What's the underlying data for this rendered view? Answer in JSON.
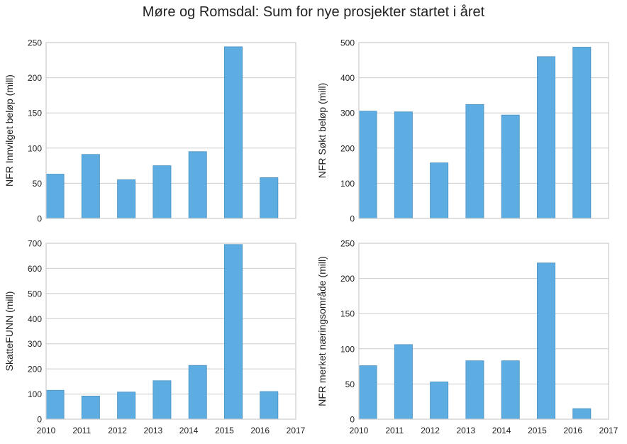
{
  "title": "Møre og Romsdal: Sum for nye prosjekter startet i året",
  "colors": {
    "bar": "#5DADE2",
    "bar_edge": "#4A90C0",
    "grid": "#CCCCCC",
    "frame": "#CCCCCC"
  },
  "chart_data": [
    {
      "type": "bar",
      "title": "",
      "xlabel": "",
      "ylabel": "NFR Innvilget beløp (mill)",
      "categories": [
        "2010",
        "2011",
        "2012",
        "2013",
        "2014",
        "2015",
        "2016"
      ],
      "values": [
        63,
        91,
        55,
        75,
        95,
        244,
        58
      ],
      "xlim": [
        2010,
        2017
      ],
      "ylim": [
        0,
        250
      ],
      "yticks": [
        0,
        50,
        100,
        150,
        200,
        250
      ],
      "xticks": [],
      "grid": true
    },
    {
      "type": "bar",
      "title": "",
      "xlabel": "",
      "ylabel": "NFR Søkt beløp (mill)",
      "categories": [
        "2010",
        "2011",
        "2012",
        "2013",
        "2014",
        "2015",
        "2016"
      ],
      "values": [
        305,
        303,
        158,
        324,
        294,
        460,
        487
      ],
      "xlim": [
        2010,
        2017
      ],
      "ylim": [
        0,
        500
      ],
      "yticks": [
        0,
        100,
        200,
        300,
        400,
        500
      ],
      "xticks": [],
      "grid": true
    },
    {
      "type": "bar",
      "title": "",
      "xlabel": "",
      "ylabel": "SkatteFUNN (mill)",
      "categories": [
        "2010",
        "2011",
        "2012",
        "2013",
        "2014",
        "2015",
        "2016"
      ],
      "values": [
        115,
        92,
        108,
        153,
        214,
        695,
        110
      ],
      "xlim": [
        2010,
        2017
      ],
      "ylim": [
        0,
        700
      ],
      "yticks": [
        0,
        100,
        200,
        300,
        400,
        500,
        600,
        700
      ],
      "xticks": [
        "2010",
        "2011",
        "2012",
        "2013",
        "2014",
        "2015",
        "2016",
        "2017"
      ],
      "grid": true
    },
    {
      "type": "bar",
      "title": "",
      "xlabel": "",
      "ylabel": "NFR merket næringsområde (mill)",
      "categories": [
        "2010",
        "2011",
        "2012",
        "2013",
        "2014",
        "2015",
        "2016"
      ],
      "values": [
        76,
        106,
        53,
        83,
        83,
        222,
        15
      ],
      "xlim": [
        2010,
        2017
      ],
      "ylim": [
        0,
        250
      ],
      "yticks": [
        0,
        50,
        100,
        150,
        200,
        250
      ],
      "xticks": [
        "2010",
        "2011",
        "2012",
        "2013",
        "2014",
        "2015",
        "2016",
        "2017"
      ],
      "grid": true
    }
  ]
}
